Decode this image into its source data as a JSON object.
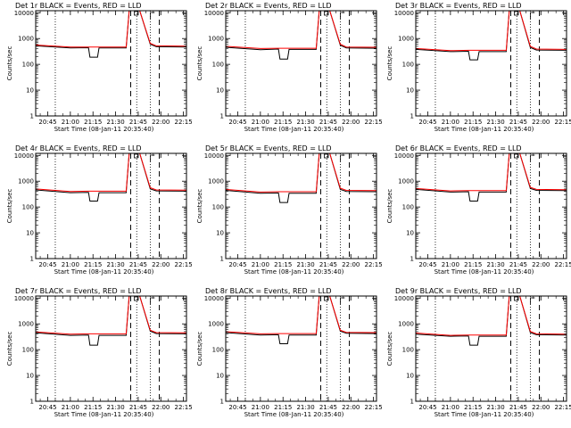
{
  "chart_data": [
    {
      "type": "line",
      "title": "Det 1r BLACK = Events, RED = LLD",
      "xlabel": "Start Time (08-Jan-11 20:35:40)",
      "ylabel": "Counts/sec",
      "yscale": "log",
      "ylim": [
        1,
        12000
      ],
      "xlim": [
        "20:37",
        "22:17"
      ],
      "x_ticks": [
        "20:45",
        "21:00",
        "21:15",
        "21:30",
        "21:45",
        "22:00",
        "22:15"
      ],
      "y_ticks": [
        "1",
        "10",
        "100",
        "1000",
        "10000"
      ],
      "series": [
        {
          "color": "#000000",
          "x": [
            "20:37",
            "21:00",
            "21:12",
            "21:13",
            "21:18",
            "21:19",
            "21:37",
            "21:39",
            "21:42",
            "21:46",
            "21:53",
            "21:57",
            "22:17"
          ],
          "values": [
            520,
            430,
            440,
            190,
            190,
            430,
            430,
            12000,
            12000,
            12000,
            600,
            480,
            470
          ]
        },
        {
          "color": "#ff0000",
          "x": [
            "20:37",
            "21:00",
            "21:12",
            "21:19",
            "21:37",
            "21:39",
            "21:42",
            "21:46",
            "21:53",
            "21:57",
            "22:17"
          ],
          "values": [
            560,
            470,
            470,
            470,
            470,
            12000,
            12000,
            12000,
            650,
            520,
            510
          ]
        }
      ],
      "annotations": {
        "dotted_vlines": [
          "20:50",
          "21:44",
          "21:53"
        ],
        "dashed_vlines": [
          "21:40",
          "21:59"
        ],
        "marker": "□"
      }
    },
    {
      "type": "line",
      "title": "Det 2r BLACK = Events, RED = LLD",
      "xlabel": "Start Time (08-Jan-11 20:35:40)",
      "ylabel": "Counts/sec",
      "yscale": "log",
      "ylim": [
        1,
        12000
      ],
      "xlim": [
        "20:37",
        "22:17"
      ],
      "x_ticks": [
        "20:45",
        "21:00",
        "21:15",
        "21:30",
        "21:45",
        "22:00",
        "22:15"
      ],
      "y_ticks": [
        "1",
        "10",
        "100",
        "1000",
        "10000"
      ],
      "series": [
        {
          "color": "#000000",
          "x": [
            "20:37",
            "21:00",
            "21:12",
            "21:13",
            "21:18",
            "21:19",
            "21:37",
            "21:39",
            "21:42",
            "21:46",
            "21:53",
            "21:57",
            "22:17"
          ],
          "values": [
            460,
            370,
            390,
            160,
            160,
            380,
            380,
            12000,
            12000,
            12000,
            550,
            430,
            420
          ]
        },
        {
          "color": "#ff0000",
          "x": [
            "20:37",
            "21:00",
            "21:12",
            "21:19",
            "21:37",
            "21:39",
            "21:42",
            "21:46",
            "21:53",
            "21:57",
            "22:17"
          ],
          "values": [
            500,
            410,
            420,
            420,
            420,
            12000,
            12000,
            12000,
            600,
            470,
            460
          ]
        }
      ],
      "annotations": {
        "dotted_vlines": [
          "20:50",
          "21:44",
          "21:53"
        ],
        "dashed_vlines": [
          "21:40",
          "21:59"
        ],
        "marker": "□"
      }
    },
    {
      "type": "line",
      "title": "Det 3r BLACK = Events, RED = LLD",
      "xlabel": "Start Time (08-Jan-11 20:35:40)",
      "ylabel": "Counts/sec",
      "yscale": "log",
      "ylim": [
        1,
        12000
      ],
      "xlim": [
        "20:37",
        "22:17"
      ],
      "x_ticks": [
        "20:45",
        "21:00",
        "21:15",
        "21:30",
        "21:45",
        "22:00",
        "22:15"
      ],
      "y_ticks": [
        "1",
        "10",
        "100",
        "1000",
        "10000"
      ],
      "series": [
        {
          "color": "#000000",
          "x": [
            "20:37",
            "21:00",
            "21:12",
            "21:13",
            "21:18",
            "21:19",
            "21:37",
            "21:39",
            "21:42",
            "21:46",
            "21:53",
            "21:57",
            "22:17"
          ],
          "values": [
            380,
            310,
            320,
            150,
            150,
            310,
            310,
            12000,
            12000,
            12000,
            450,
            360,
            350
          ]
        },
        {
          "color": "#ff0000",
          "x": [
            "20:37",
            "21:00",
            "21:12",
            "21:19",
            "21:37",
            "21:39",
            "21:42",
            "21:46",
            "21:53",
            "21:57",
            "22:17"
          ],
          "values": [
            410,
            340,
            350,
            350,
            350,
            12000,
            12000,
            12000,
            500,
            390,
            380
          ]
        }
      ],
      "annotations": {
        "dotted_vlines": [
          "20:50",
          "21:44",
          "21:53"
        ],
        "dashed_vlines": [
          "21:40",
          "21:59"
        ],
        "marker": "□"
      }
    },
    {
      "type": "line",
      "title": "Det 4r BLACK = Events, RED = LLD",
      "xlabel": "Start Time (08-Jan-11 20:35:40)",
      "ylabel": "Counts/sec",
      "yscale": "log",
      "ylim": [
        1,
        12000
      ],
      "xlim": [
        "20:37",
        "22:17"
      ],
      "x_ticks": [
        "20:45",
        "21:00",
        "21:15",
        "21:30",
        "21:45",
        "22:00",
        "22:15"
      ],
      "y_ticks": [
        "1",
        "10",
        "100",
        "1000",
        "10000"
      ],
      "series": [
        {
          "color": "#000000",
          "x": [
            "20:37",
            "21:00",
            "21:12",
            "21:13",
            "21:18",
            "21:19",
            "21:37",
            "21:39",
            "21:42",
            "21:46",
            "21:53",
            "21:57",
            "22:17"
          ],
          "values": [
            460,
            360,
            370,
            170,
            170,
            360,
            360,
            12000,
            12000,
            12000,
            500,
            420,
            410
          ]
        },
        {
          "color": "#ff0000",
          "x": [
            "20:37",
            "21:00",
            "21:12",
            "21:19",
            "21:37",
            "21:39",
            "21:42",
            "21:46",
            "21:53",
            "21:57",
            "22:17"
          ],
          "values": [
            500,
            400,
            410,
            410,
            410,
            12000,
            12000,
            12000,
            560,
            460,
            450
          ]
        }
      ],
      "annotations": {
        "dotted_vlines": [
          "20:50",
          "21:44",
          "21:53"
        ],
        "dashed_vlines": [
          "21:40",
          "21:59"
        ],
        "marker": "□"
      }
    },
    {
      "type": "line",
      "title": "Det 5r BLACK = Events, RED = LLD",
      "xlabel": "Start Time (08-Jan-11 20:35:40)",
      "ylabel": "Counts/sec",
      "yscale": "log",
      "ylim": [
        1,
        12000
      ],
      "xlim": [
        "20:37",
        "22:17"
      ],
      "x_ticks": [
        "20:45",
        "21:00",
        "21:15",
        "21:30",
        "21:45",
        "22:00",
        "22:15"
      ],
      "y_ticks": [
        "1",
        "10",
        "100",
        "1000",
        "10000"
      ],
      "series": [
        {
          "color": "#000000",
          "x": [
            "20:37",
            "21:00",
            "21:12",
            "21:13",
            "21:18",
            "21:19",
            "21:37",
            "21:39",
            "21:42",
            "21:46",
            "21:53",
            "21:57",
            "22:17"
          ],
          "values": [
            440,
            340,
            350,
            150,
            150,
            340,
            340,
            12000,
            12000,
            12000,
            480,
            400,
            390
          ]
        },
        {
          "color": "#ff0000",
          "x": [
            "20:37",
            "21:00",
            "21:12",
            "21:19",
            "21:37",
            "21:39",
            "21:42",
            "21:46",
            "21:53",
            "21:57",
            "22:17"
          ],
          "values": [
            480,
            380,
            390,
            390,
            390,
            12000,
            12000,
            12000,
            540,
            440,
            430
          ]
        }
      ],
      "annotations": {
        "dotted_vlines": [
          "20:50",
          "21:44",
          "21:53"
        ],
        "dashed_vlines": [
          "21:40",
          "21:59"
        ],
        "marker": "□"
      }
    },
    {
      "type": "line",
      "title": "Det 6r BLACK = Events, RED = LLD",
      "xlabel": "Start Time (08-Jan-11 20:35:40)",
      "ylabel": "Counts/sec",
      "yscale": "log",
      "ylim": [
        1,
        12000
      ],
      "xlim": [
        "20:37",
        "22:17"
      ],
      "x_ticks": [
        "20:45",
        "21:00",
        "21:15",
        "21:30",
        "21:45",
        "22:00",
        "22:15"
      ],
      "y_ticks": [
        "1",
        "10",
        "100",
        "1000",
        "10000"
      ],
      "series": [
        {
          "color": "#000000",
          "x": [
            "20:37",
            "21:00",
            "21:12",
            "21:13",
            "21:18",
            "21:19",
            "21:37",
            "21:39",
            "21:42",
            "21:46",
            "21:53",
            "21:57",
            "22:17"
          ],
          "values": [
            480,
            380,
            390,
            170,
            170,
            380,
            380,
            12000,
            12000,
            12000,
            520,
            440,
            430
          ]
        },
        {
          "color": "#ff0000",
          "x": [
            "20:37",
            "21:00",
            "21:12",
            "21:19",
            "21:37",
            "21:39",
            "21:42",
            "21:46",
            "21:53",
            "21:57",
            "22:17"
          ],
          "values": [
            520,
            420,
            430,
            430,
            430,
            12000,
            12000,
            12000,
            580,
            480,
            470
          ]
        }
      ],
      "annotations": {
        "dotted_vlines": [
          "20:50",
          "21:44",
          "21:53"
        ],
        "dashed_vlines": [
          "21:40",
          "21:59"
        ],
        "marker": "□"
      }
    },
    {
      "type": "line",
      "title": "Det 7r BLACK = Events, RED = LLD",
      "xlabel": "Start Time (08-Jan-11 20:35:40)",
      "ylabel": "Counts/sec",
      "yscale": "log",
      "ylim": [
        1,
        12000
      ],
      "xlim": [
        "20:37",
        "22:17"
      ],
      "x_ticks": [
        "20:45",
        "21:00",
        "21:15",
        "21:30",
        "21:45",
        "22:00",
        "22:15"
      ],
      "y_ticks": [
        "1",
        "10",
        "100",
        "1000",
        "10000"
      ],
      "series": [
        {
          "color": "#000000",
          "x": [
            "20:37",
            "21:00",
            "21:12",
            "21:13",
            "21:18",
            "21:19",
            "21:37",
            "21:39",
            "21:42",
            "21:46",
            "21:53",
            "21:57",
            "22:17"
          ],
          "values": [
            450,
            360,
            370,
            150,
            150,
            360,
            360,
            12000,
            12000,
            12000,
            520,
            420,
            410
          ]
        },
        {
          "color": "#ff0000",
          "x": [
            "20:37",
            "21:00",
            "21:12",
            "21:19",
            "21:37",
            "21:39",
            "21:42",
            "21:46",
            "21:53",
            "21:57",
            "22:17"
          ],
          "values": [
            490,
            400,
            410,
            410,
            410,
            12000,
            12000,
            12000,
            570,
            460,
            450
          ]
        }
      ],
      "annotations": {
        "dotted_vlines": [
          "20:50",
          "21:44",
          "21:53"
        ],
        "dashed_vlines": [
          "21:40",
          "21:59"
        ],
        "marker": "□"
      }
    },
    {
      "type": "line",
      "title": "Det 8r BLACK = Events, RED = LLD",
      "xlabel": "Start Time (08-Jan-11 20:35:40)",
      "ylabel": "Counts/sec",
      "yscale": "log",
      "ylim": [
        1,
        12000
      ],
      "xlim": [
        "20:37",
        "22:17"
      ],
      "x_ticks": [
        "20:45",
        "21:00",
        "21:15",
        "21:30",
        "21:45",
        "22:00",
        "22:15"
      ],
      "y_ticks": [
        "1",
        "10",
        "100",
        "1000",
        "10000"
      ],
      "series": [
        {
          "color": "#000000",
          "x": [
            "20:37",
            "21:00",
            "21:12",
            "21:13",
            "21:18",
            "21:19",
            "21:37",
            "21:39",
            "21:42",
            "21:46",
            "21:53",
            "21:57",
            "22:17"
          ],
          "values": [
            460,
            370,
            380,
            170,
            170,
            370,
            370,
            12000,
            12000,
            12000,
            520,
            430,
            420
          ]
        },
        {
          "color": "#ff0000",
          "x": [
            "20:37",
            "21:00",
            "21:12",
            "21:19",
            "21:37",
            "21:39",
            "21:42",
            "21:46",
            "21:53",
            "21:57",
            "22:17"
          ],
          "values": [
            500,
            410,
            420,
            420,
            420,
            12000,
            12000,
            12000,
            570,
            470,
            460
          ]
        }
      ],
      "annotations": {
        "dotted_vlines": [
          "20:50",
          "21:44",
          "21:53"
        ],
        "dashed_vlines": [
          "21:40",
          "21:59"
        ],
        "marker": "□"
      }
    },
    {
      "type": "line",
      "title": "Det 9r BLACK = Events, RED = LLD",
      "xlabel": "Start Time (08-Jan-11 20:35:40)",
      "ylabel": "Counts/sec",
      "yscale": "log",
      "ylim": [
        1,
        12000
      ],
      "xlim": [
        "20:37",
        "22:17"
      ],
      "x_ticks": [
        "20:45",
        "21:00",
        "21:15",
        "21:30",
        "21:45",
        "22:00",
        "22:15"
      ],
      "y_ticks": [
        "1",
        "10",
        "100",
        "1000",
        "10000"
      ],
      "series": [
        {
          "color": "#000000",
          "x": [
            "20:37",
            "21:00",
            "21:12",
            "21:13",
            "21:18",
            "21:19",
            "21:37",
            "21:39",
            "21:42",
            "21:46",
            "21:53",
            "21:57",
            "22:17"
          ],
          "values": [
            400,
            330,
            340,
            150,
            150,
            330,
            330,
            12000,
            12000,
            12000,
            460,
            380,
            370
          ]
        },
        {
          "color": "#ff0000",
          "x": [
            "20:37",
            "21:00",
            "21:12",
            "21:19",
            "21:37",
            "21:39",
            "21:42",
            "21:46",
            "21:53",
            "21:57",
            "22:17"
          ],
          "values": [
            440,
            360,
            370,
            370,
            370,
            12000,
            12000,
            12000,
            510,
            410,
            400
          ]
        }
      ],
      "annotations": {
        "dotted_vlines": [
          "20:50",
          "21:44",
          "21:53"
        ],
        "dashed_vlines": [
          "21:40",
          "21:59"
        ],
        "marker": "□"
      }
    }
  ]
}
